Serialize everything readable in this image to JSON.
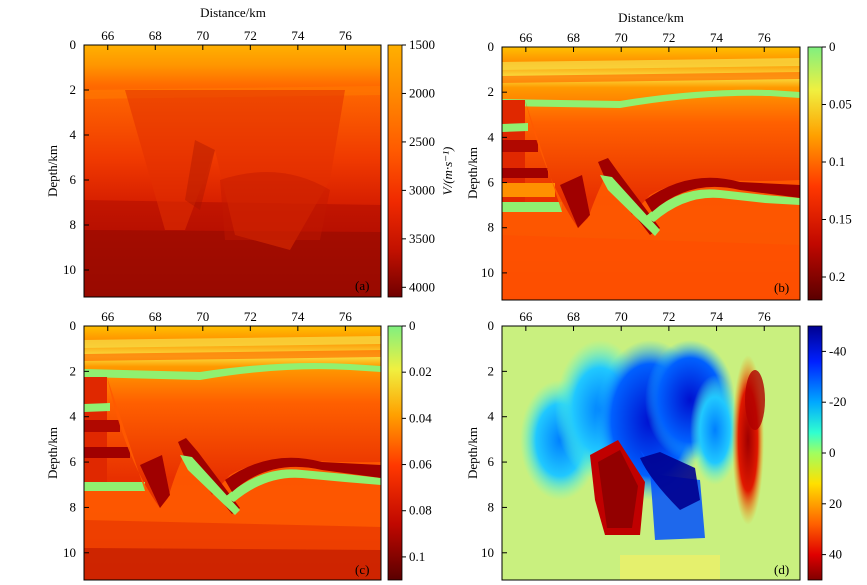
{
  "figure": {
    "panels": [
      {
        "id": "a",
        "tag": "(a)",
        "xlabel": "Distance/km",
        "ylabel": "Depth/km",
        "x_ticks": [
          "66",
          "68",
          "70",
          "72",
          "74",
          "76"
        ],
        "y_ticks": [
          "0",
          "2",
          "4",
          "6",
          "8",
          "10"
        ],
        "colorbar": {
          "label": "V/(m·s⁻¹)",
          "ticks": [
            "1500",
            "2000",
            "2500",
            "3000",
            "3500",
            "4000"
          ],
          "colormap": "autumn-dark",
          "range": [
            1500,
            4100
          ]
        }
      },
      {
        "id": "b",
        "tag": "(b)",
        "xlabel": "Distance/km",
        "ylabel": "Depth/km",
        "x_ticks": [
          "66",
          "68",
          "70",
          "72",
          "74",
          "76"
        ],
        "y_ticks": [
          "0",
          "2",
          "4",
          "6",
          "8",
          "10"
        ],
        "colorbar": {
          "label": "",
          "ticks": [
            "0",
            "0.05",
            "0.1",
            "0.15",
            "0.2"
          ],
          "colormap": "green-yellow-red-darkred",
          "range": [
            0,
            0.22
          ]
        }
      },
      {
        "id": "c",
        "tag": "(c)",
        "xlabel": "",
        "ylabel": "Depth/km",
        "x_ticks": [
          "66",
          "68",
          "70",
          "72",
          "74",
          "76"
        ],
        "y_ticks": [
          "0",
          "2",
          "4",
          "6",
          "8",
          "10"
        ],
        "colorbar": {
          "label": "",
          "ticks": [
            "0",
            "0.02",
            "0.04",
            "0.06",
            "0.08",
            "0.1"
          ],
          "colormap": "green-yellow-red-darkred",
          "range": [
            0,
            0.11
          ]
        }
      },
      {
        "id": "d",
        "tag": "(d)",
        "xlabel": "",
        "ylabel": "Depth/km",
        "x_ticks": [
          "66",
          "68",
          "70",
          "72",
          "74",
          "76"
        ],
        "y_ticks": [
          "0",
          "2",
          "4",
          "6",
          "8",
          "10"
        ],
        "colorbar": {
          "label": "",
          "ticks": [
            "-40",
            "-20",
            "0",
            "20",
            "40"
          ],
          "colormap": "jet-reversed",
          "range": [
            -50,
            50
          ]
        }
      }
    ]
  },
  "chart_data": [
    {
      "type": "heatmap",
      "panel": "a",
      "xlabel": "Distance/km",
      "ylabel": "Depth/km",
      "xlim": [
        65,
        77.5
      ],
      "ylim": [
        11.2,
        0
      ],
      "zlabel": "V/(m·s⁻¹)",
      "zlim": [
        1500,
        4100
      ],
      "x_ticks": [
        66,
        68,
        70,
        72,
        74,
        76
      ],
      "y_ticks": [
        0,
        2,
        4,
        6,
        8,
        10
      ],
      "colorbar_ticks": [
        1500,
        2000,
        2500,
        3000,
        3500,
        4000
      ],
      "tag": "(a)"
    },
    {
      "type": "heatmap",
      "panel": "b",
      "xlabel": "Distance/km",
      "ylabel": "Depth/km",
      "xlim": [
        65,
        77.5
      ],
      "ylim": [
        11.2,
        0
      ],
      "zlim": [
        0,
        0.22
      ],
      "x_ticks": [
        66,
        68,
        70,
        72,
        74,
        76
      ],
      "y_ticks": [
        0,
        2,
        4,
        6,
        8,
        10
      ],
      "colorbar_ticks": [
        0,
        0.05,
        0.1,
        0.15,
        0.2
      ],
      "tag": "(b)"
    },
    {
      "type": "heatmap",
      "panel": "c",
      "xlabel": "",
      "ylabel": "Depth/km",
      "xlim": [
        65,
        77.5
      ],
      "ylim": [
        11.2,
        0
      ],
      "zlim": [
        0,
        0.11
      ],
      "x_ticks": [
        66,
        68,
        70,
        72,
        74,
        76
      ],
      "y_ticks": [
        0,
        2,
        4,
        6,
        8,
        10
      ],
      "colorbar_ticks": [
        0,
        0.02,
        0.04,
        0.06,
        0.08,
        0.1
      ],
      "tag": "(c)"
    },
    {
      "type": "heatmap",
      "panel": "d",
      "xlabel": "",
      "ylabel": "Depth/km",
      "xlim": [
        65,
        77.5
      ],
      "ylim": [
        11.2,
        0
      ],
      "zlim": [
        -50,
        50
      ],
      "x_ticks": [
        66,
        68,
        70,
        72,
        74,
        76
      ],
      "y_ticks": [
        0,
        2,
        4,
        6,
        8,
        10
      ],
      "colorbar_ticks": [
        -40,
        -20,
        0,
        20,
        40
      ],
      "tag": "(d)"
    }
  ]
}
